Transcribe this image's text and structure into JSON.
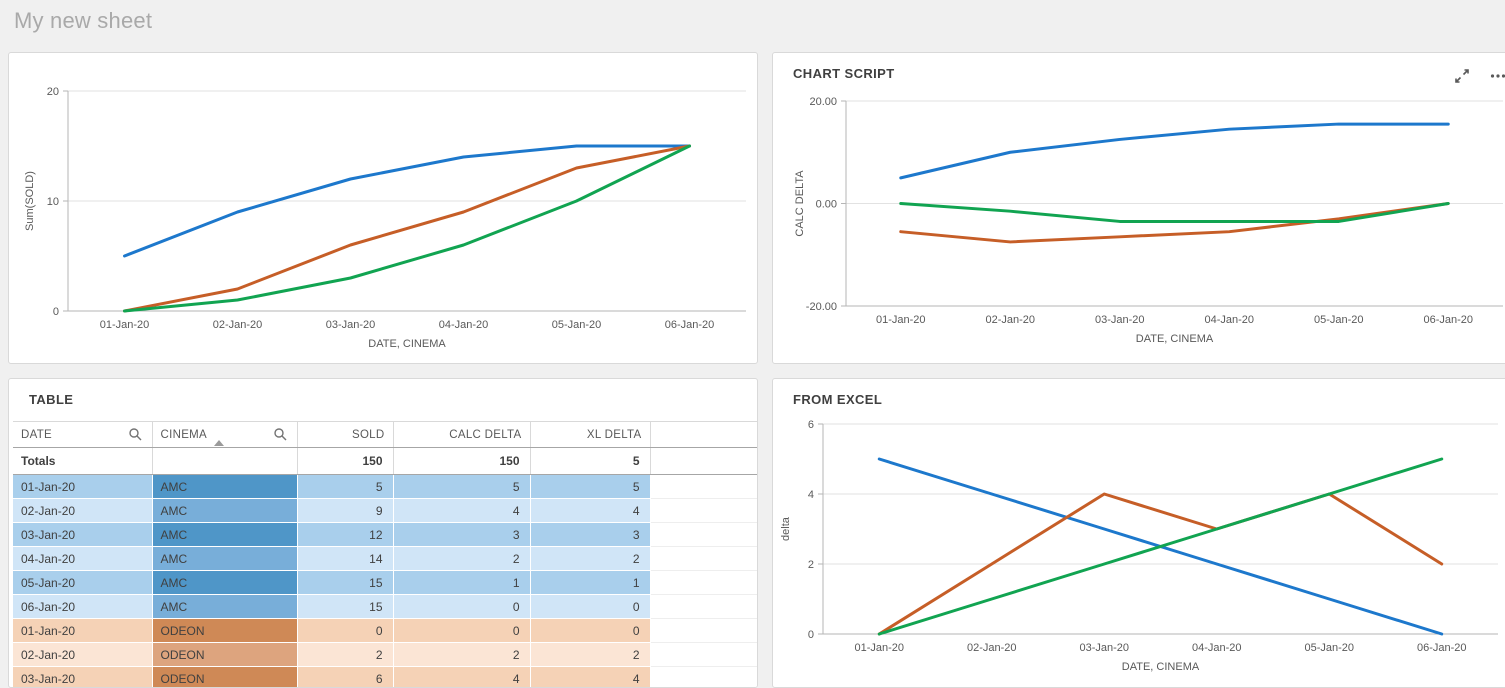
{
  "sheet": {
    "title": "My new sheet"
  },
  "colors": {
    "blue": "#1d78cc",
    "orange": "#c65e27",
    "green": "#11a451",
    "amc_dark_bg": "#a9cfec",
    "amc_dark_cin": "#4f96c8",
    "amc_light_bg": "#d0e5f7",
    "amc_light_cin": "#78aed9",
    "odeon_dark_bg": "#f5d2b6",
    "odeon_dark_cin": "#cf8956",
    "odeon_light_bg": "#fbe5d5",
    "odeon_light_cin": "#dda47e"
  },
  "panels": {
    "sold_chart": {
      "title": ""
    },
    "chart_script": {
      "title": "CHART SCRIPT",
      "icons": [
        "expand-icon",
        "more-menu-icon"
      ]
    },
    "table": {
      "title": "TABLE"
    },
    "from_excel": {
      "title": "FROM EXCEL"
    }
  },
  "chart_data": [
    {
      "id": "chart-sold",
      "type": "line",
      "title": "",
      "xlabel": "DATE, CINEMA",
      "ylabel": "Sum(SOLD)",
      "ylim": [
        0,
        20
      ],
      "yticks": [
        {
          "v": 0,
          "label": "0"
        },
        {
          "v": 10,
          "label": "10"
        },
        {
          "v": 20,
          "label": "20"
        }
      ],
      "categories": [
        "01-Jan-20",
        "02-Jan-20",
        "03-Jan-20",
        "04-Jan-20",
        "05-Jan-20",
        "06-Jan-20"
      ],
      "grid": true,
      "legend": "none",
      "series": [
        {
          "name": "blue",
          "color": "blue",
          "values": [
            5,
            9,
            12,
            14,
            15,
            15
          ]
        },
        {
          "name": "orange",
          "color": "orange",
          "values": [
            0,
            2,
            6,
            9,
            13,
            15
          ]
        },
        {
          "name": "green",
          "color": "green",
          "values": [
            0,
            1,
            3,
            6,
            10,
            15
          ]
        }
      ]
    },
    {
      "id": "chart-script",
      "type": "line",
      "title": "CHART SCRIPT",
      "xlabel": "DATE, CINEMA",
      "ylabel": "CALC DELTA",
      "ylim": [
        -20,
        20
      ],
      "yticks": [
        {
          "v": -20,
          "label": "-20.00"
        },
        {
          "v": 0,
          "label": "0.00"
        },
        {
          "v": 20,
          "label": "20.00"
        }
      ],
      "categories": [
        "01-Jan-20",
        "02-Jan-20",
        "03-Jan-20",
        "04-Jan-20",
        "05-Jan-20",
        "06-Jan-20"
      ],
      "grid": true,
      "legend": "none",
      "series": [
        {
          "name": "blue",
          "color": "blue",
          "values": [
            5,
            10,
            12.5,
            14.5,
            15.5,
            15.5
          ]
        },
        {
          "name": "orange",
          "color": "orange",
          "values": [
            -5.5,
            -7.5,
            -6.5,
            -5.5,
            -3,
            0
          ]
        },
        {
          "name": "green",
          "color": "green",
          "values": [
            0,
            -1.5,
            -3.5,
            -3.5,
            -3.5,
            0
          ]
        }
      ]
    },
    {
      "id": "chart-excel",
      "type": "line",
      "title": "FROM EXCEL",
      "xlabel": "DATE, CINEMA",
      "ylabel": "delta",
      "ylim": [
        0,
        6
      ],
      "yticks": [
        {
          "v": 0,
          "label": "0"
        },
        {
          "v": 2,
          "label": "2"
        },
        {
          "v": 4,
          "label": "4"
        },
        {
          "v": 6,
          "label": "6"
        }
      ],
      "categories": [
        "01-Jan-20",
        "02-Jan-20",
        "03-Jan-20",
        "04-Jan-20",
        "05-Jan-20",
        "06-Jan-20"
      ],
      "grid": true,
      "legend": "none",
      "series": [
        {
          "name": "blue",
          "color": "blue",
          "values": [
            5,
            4,
            3,
            2,
            1,
            0
          ]
        },
        {
          "name": "orange",
          "color": "orange",
          "values": [
            0,
            2,
            4,
            3,
            4,
            2
          ]
        },
        {
          "name": "green",
          "color": "green",
          "values": [
            0,
            1,
            2,
            3,
            4,
            5
          ]
        }
      ]
    }
  ],
  "table": {
    "title": "TABLE",
    "columns": [
      {
        "label": "DATE",
        "searchable": true
      },
      {
        "label": "CINEMA",
        "searchable": true,
        "sorted": "asc"
      },
      {
        "label": "SOLD"
      },
      {
        "label": "CALC DELTA"
      },
      {
        "label": "XL DELTA"
      },
      {
        "label": ""
      }
    ],
    "totals": {
      "label": "Totals",
      "sold": "150",
      "calc_delta": "150",
      "xl_delta": "5"
    },
    "rows": [
      {
        "date": "01-Jan-20",
        "cinema": "AMC",
        "sold": "5",
        "calc_delta": "5",
        "xl_delta": "5",
        "tone": "dark"
      },
      {
        "date": "02-Jan-20",
        "cinema": "AMC",
        "sold": "9",
        "calc_delta": "4",
        "xl_delta": "4",
        "tone": "light"
      },
      {
        "date": "03-Jan-20",
        "cinema": "AMC",
        "sold": "12",
        "calc_delta": "3",
        "xl_delta": "3",
        "tone": "dark"
      },
      {
        "date": "04-Jan-20",
        "cinema": "AMC",
        "sold": "14",
        "calc_delta": "2",
        "xl_delta": "2",
        "tone": "light"
      },
      {
        "date": "05-Jan-20",
        "cinema": "AMC",
        "sold": "15",
        "calc_delta": "1",
        "xl_delta": "1",
        "tone": "dark"
      },
      {
        "date": "06-Jan-20",
        "cinema": "AMC",
        "sold": "15",
        "calc_delta": "0",
        "xl_delta": "0",
        "tone": "light"
      },
      {
        "date": "01-Jan-20",
        "cinema": "ODEON",
        "sold": "0",
        "calc_delta": "0",
        "xl_delta": "0",
        "tone": "dark"
      },
      {
        "date": "02-Jan-20",
        "cinema": "ODEON",
        "sold": "2",
        "calc_delta": "2",
        "xl_delta": "2",
        "tone": "light"
      },
      {
        "date": "03-Jan-20",
        "cinema": "ODEON",
        "sold": "6",
        "calc_delta": "4",
        "xl_delta": "4",
        "tone": "dark"
      }
    ]
  }
}
